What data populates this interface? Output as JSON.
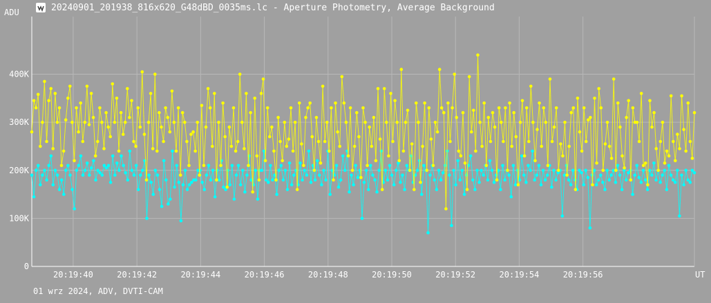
{
  "window": {
    "title": "20240901_201938_816x620_G48dBD_0035ms.lc - Aperture Photometry, Average Background",
    "icon": "lightcurve-app-icon"
  },
  "footer": {
    "info": "01 wrz 2024, ADV, DVTI-CAM"
  },
  "colors": {
    "background": "#a0a0a0",
    "grid": "#b8b8b8",
    "series1": "#ffff00",
    "series2": "#00ffff",
    "text": "#ffffff"
  },
  "chart_data": {
    "type": "line",
    "title": "",
    "xlabel": "UT",
    "ylabel": "ADU",
    "xlim": [
      "20:19:38.7",
      "20:19:59.5"
    ],
    "ylim": [
      0,
      520000
    ],
    "grid": true,
    "y_ticks": [
      {
        "value": 0,
        "label": "0"
      },
      {
        "value": 100000,
        "label": "100K"
      },
      {
        "value": 200000,
        "label": "200K"
      },
      {
        "value": 300000,
        "label": "300K"
      },
      {
        "value": 400000,
        "label": "400K"
      }
    ],
    "x_ticks": [
      {
        "value": "20:19:40",
        "label": "20:19:40"
      },
      {
        "value": "20:19:42",
        "label": "20:19:42"
      },
      {
        "value": "20:19:44",
        "label": "20:19:44"
      },
      {
        "value": "20:19:46",
        "label": "20:19:46"
      },
      {
        "value": "20:19:48",
        "label": "20:19:48"
      },
      {
        "value": "20:19:50",
        "label": "20:19:50"
      },
      {
        "value": "20:19:52",
        "label": "20:19:52"
      },
      {
        "value": "20:19:54",
        "label": "20:19:54"
      },
      {
        "value": "20:19:56",
        "label": "20:19:56"
      }
    ],
    "sample_interval_s": 0.035,
    "series": [
      {
        "color": "#ffff00",
        "values": [
          280000,
          345000,
          330000,
          358000,
          250000,
          300000,
          385000,
          260000,
          345000,
          370000,
          245000,
          360000,
          300000,
          330000,
          210000,
          240000,
          305000,
          350000,
          375000,
          300000,
          220000,
          330000,
          280000,
          340000,
          260000,
          300000,
          375000,
          295000,
          360000,
          310000,
          230000,
          260000,
          330000,
          300000,
          245000,
          320000,
          290000,
          270000,
          380000,
          300000,
          350000,
          240000,
          320000,
          275000,
          300000,
          370000,
          310000,
          345000,
          260000,
          250000,
          330000,
          290000,
          405000,
          275000,
          180000,
          300000,
          360000,
          245000,
          400000,
          240000,
          320000,
          290000,
          260000,
          330000,
          310000,
          280000,
          365000,
          300000,
          240000,
          330000,
          190000,
          320000,
          300000,
          260000,
          210000,
          275000,
          280000,
          240000,
          300000,
          190000,
          335000,
          210000,
          290000,
          370000,
          330000,
          250000,
          360000,
          180000,
          300000,
          210000,
          340000,
          270000,
          165000,
          290000,
          250000,
          330000,
          240000,
          260000,
          400000,
          300000,
          245000,
          360000,
          210000,
          320000,
          155000,
          350000,
          230000,
          180000,
          360000,
          390000,
          220000,
          330000,
          270000,
          290000,
          240000,
          180000,
          310000,
          260000,
          220000,
          300000,
          250000,
          265000,
          330000,
          240000,
          300000,
          160000,
          340000,
          255000,
          210000,
          310000,
          330000,
          340000,
          270000,
          200000,
          310000,
          260000,
          215000,
          375000,
          260000,
          300000,
          240000,
          330000,
          180000,
          340000,
          280000,
          250000,
          395000,
          340000,
          300000,
          230000,
          330000,
          200000,
          250000,
          320000,
          270000,
          185000,
          330000,
          300000,
          210000,
          290000,
          250000,
          310000,
          220000,
          370000,
          265000,
          160000,
          370000,
          300000,
          230000,
          360000,
          260000,
          345000,
          300000,
          220000,
          410000,
          240000,
          300000,
          325000,
          200000,
          255000,
          160000,
          340000,
          300000,
          175000,
          250000,
          340000,
          200000,
          330000,
          265000,
          210000,
          300000,
          280000,
          410000,
          330000,
          320000,
          120000,
          340000,
          260000,
          330000,
          400000,
          310000,
          240000,
          230000,
          320000,
          215000,
          160000,
          395000,
          280000,
          325000,
          240000,
          440000,
          300000,
          250000,
          340000,
          210000,
          310000,
          260000,
          320000,
          290000,
          180000,
          330000,
          300000,
          260000,
          330000,
          200000,
          340000,
          250000,
          320000,
          270000,
          170000,
          300000,
          345000,
          230000,
          330000,
          260000,
          375000,
          300000,
          220000,
          285000,
          340000,
          250000,
          330000,
          300000,
          210000,
          390000,
          260000,
          290000,
          330000,
          200000,
          255000,
          230000,
          300000,
          190000,
          250000,
          320000,
          330000,
          160000,
          350000,
          280000,
          240000,
          330000,
          260000,
          305000,
          310000,
          170000,
          350000,
          215000,
          370000,
          330000,
          200000,
          255000,
          300000,
          250000,
          225000,
          390000,
          200000,
          340000,
          290000,
          230000,
          205000,
          310000,
          345000,
          180000,
          330000,
          300000,
          300000,
          260000,
          360000,
          210000,
          215000,
          170000,
          345000,
          290000,
          320000,
          245000,
          200000,
          260000,
          300000,
          215000,
          240000,
          230000,
          355000,
          260000,
          220000,
          275000,
          245000,
          355000,
          285000,
          240000,
          340000,
          260000,
          225000,
          320000
        ]
      },
      {
        "color": "#00ffff",
        "values": [
          190000,
          145000,
          200000,
          210000,
          170000,
          190000,
          200000,
          180000,
          210000,
          230000,
          170000,
          200000,
          190000,
          160000,
          180000,
          150000,
          200000,
          210000,
          190000,
          160000,
          120000,
          200000,
          210000,
          230000,
          190000,
          200000,
          215000,
          190000,
          205000,
          220000,
          180000,
          200000,
          195000,
          190000,
          210000,
          205000,
          210000,
          175000,
          230000,
          190000,
          215000,
          200000,
          230000,
          210000,
          195000,
          180000,
          240000,
          200000,
          190000,
          210000,
          160000,
          190000,
          200000,
          220000,
          100000,
          190000,
          175000,
          150000,
          200000,
          190000,
          160000,
          125000,
          220000,
          180000,
          130000,
          140000,
          240000,
          165000,
          210000,
          175000,
          95000,
          170000,
          200000,
          160000,
          170000,
          175000,
          180000,
          180000,
          200000,
          200000,
          175000,
          160000,
          190000,
          210000,
          180000,
          200000,
          145000,
          200000,
          180000,
          220000,
          165000,
          160000,
          200000,
          170000,
          210000,
          140000,
          190000,
          210000,
          170000,
          200000,
          155000,
          190000,
          230000,
          180000,
          170000,
          200000,
          140000,
          200000,
          200000,
          240000,
          180000,
          175000,
          210000,
          180000,
          190000,
          150000,
          200000,
          210000,
          180000,
          200000,
          160000,
          215000,
          170000,
          190000,
          200000,
          170000,
          215000,
          180000,
          200000,
          190000,
          240000,
          175000,
          210000,
          180000,
          220000,
          190000,
          170000,
          200000,
          180000,
          240000,
          150000,
          200000,
          190000,
          210000,
          165000,
          180000,
          230000,
          200000,
          240000,
          155000,
          190000,
          170000,
          210000,
          185000,
          200000,
          100000,
          175000,
          200000,
          160000,
          210000,
          190000,
          180000,
          155000,
          200000,
          240000,
          175000,
          200000,
          180000,
          210000,
          190000,
          170000,
          200000,
          215000,
          175000,
          190000,
          160000,
          210000,
          200000,
          230000,
          175000,
          190000,
          200000,
          220000,
          150000,
          210000,
          200000,
          70000,
          190000,
          210000,
          180000,
          160000,
          200000,
          180000,
          195000,
          210000,
          240000,
          190000,
          85000,
          200000,
          170000,
          220000,
          180000,
          200000,
          150000,
          190000,
          210000,
          230000,
          180000,
          160000,
          200000,
          175000,
          200000,
          190000,
          210000,
          180000,
          220000,
          200000,
          175000,
          190000,
          200000,
          160000,
          210000,
          180000,
          200000,
          190000,
          145000,
          210000,
          170000,
          200000,
          180000,
          230000,
          190000,
          175000,
          210000,
          200000,
          240000,
          180000,
          190000,
          210000,
          170000,
          200000,
          180000,
          190000,
          210000,
          165000,
          200000,
          180000,
          195000,
          200000,
          105000,
          190000,
          210000,
          180000,
          170000,
          200000,
          180000,
          160000,
          200000,
          195000,
          170000,
          200000,
          185000,
          80000,
          190000,
          200000,
          170000,
          180000,
          190000,
          175000,
          160000,
          200000,
          180000,
          190000,
          200000,
          175000,
          210000,
          190000,
          160000,
          200000,
          180000,
          195000,
          200000,
          150000,
          190000,
          210000,
          185000,
          175000,
          200000,
          180000,
          160000,
          200000,
          190000,
          215000,
          180000,
          200000,
          175000,
          190000,
          200000,
          160000,
          210000,
          190000,
          180000,
          175000,
          200000,
          105000,
          190000,
          170000,
          200000,
          180000,
          175000,
          200000,
          195000
        ]
      }
    ]
  }
}
